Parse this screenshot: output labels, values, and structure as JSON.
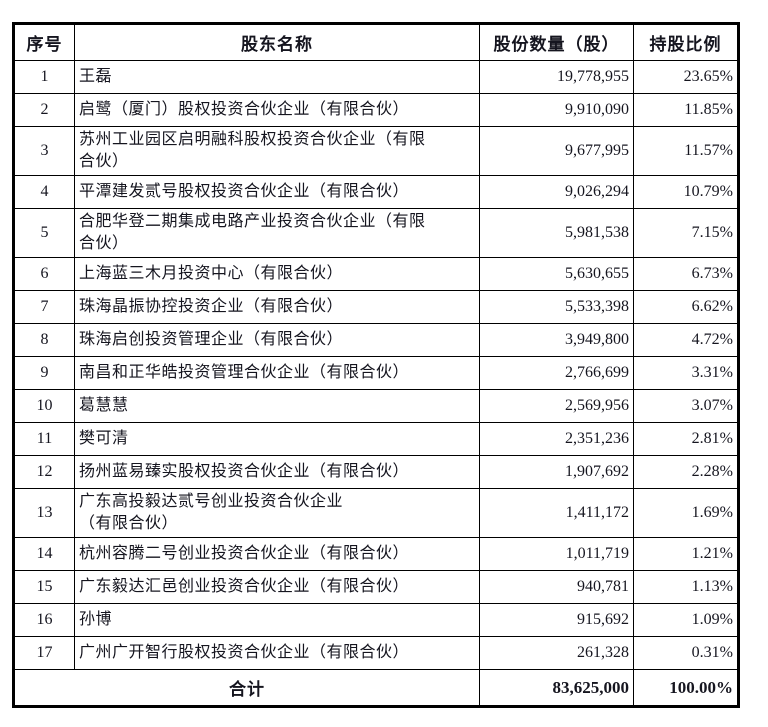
{
  "colors": {
    "background": "#ffffff",
    "border": "#000000",
    "text": "#15151f"
  },
  "table": {
    "headers": {
      "index": "序号",
      "name": "股东名称",
      "shares": "股份数量（股）",
      "pct": "持股比例"
    },
    "rows": [
      {
        "no": "1",
        "name": "王磊",
        "shares": "19,778,955",
        "pct": "23.65%"
      },
      {
        "no": "2",
        "name": "启鹭（厦门）股权投资合伙企业（有限合伙）",
        "shares": "9,910,090",
        "pct": "11.85%"
      },
      {
        "no": "3",
        "name": "苏州工业园区启明融科股权投资合伙企业（有限\n合伙）",
        "shares": "9,677,995",
        "pct": "11.57%"
      },
      {
        "no": "4",
        "name": "平潭建发贰号股权投资合伙企业（有限合伙）",
        "shares": "9,026,294",
        "pct": "10.79%"
      },
      {
        "no": "5",
        "name": "合肥华登二期集成电路产业投资合伙企业（有限\n合伙）",
        "shares": "5,981,538",
        "pct": "7.15%"
      },
      {
        "no": "6",
        "name": "上海蓝三木月投资中心（有限合伙）",
        "shares": "5,630,655",
        "pct": "6.73%"
      },
      {
        "no": "7",
        "name": "珠海晶振协控投资企业（有限合伙）",
        "shares": "5,533,398",
        "pct": "6.62%"
      },
      {
        "no": "8",
        "name": "珠海启创投资管理企业（有限合伙）",
        "shares": "3,949,800",
        "pct": "4.72%"
      },
      {
        "no": "9",
        "name": "南昌和正华皓投资管理合伙企业（有限合伙）",
        "shares": "2,766,699",
        "pct": "3.31%"
      },
      {
        "no": "10",
        "name": "葛慧慧",
        "shares": "2,569,956",
        "pct": "3.07%"
      },
      {
        "no": "11",
        "name": "樊可清",
        "shares": "2,351,236",
        "pct": "2.81%"
      },
      {
        "no": "12",
        "name": "扬州蓝易臻实股权投资合伙企业（有限合伙）",
        "shares": "1,907,692",
        "pct": "2.28%"
      },
      {
        "no": "13",
        "name": "广东高投毅达贰号创业投资合伙企业\n（有限合伙）",
        "shares": "1,411,172",
        "pct": "1.69%"
      },
      {
        "no": "14",
        "name": "杭州容腾二号创业投资合伙企业（有限合伙）",
        "shares": "1,011,719",
        "pct": "1.21%"
      },
      {
        "no": "15",
        "name": "广东毅达汇邑创业投资合伙企业（有限合伙）",
        "shares": "940,781",
        "pct": "1.13%"
      },
      {
        "no": "16",
        "name": "孙博",
        "shares": "915,692",
        "pct": "1.09%"
      },
      {
        "no": "17",
        "name": "广州广开智行股权投资合伙企业（有限合伙）",
        "shares": "261,328",
        "pct": "0.31%"
      }
    ],
    "total": {
      "label": "合计",
      "shares": "83,625,000",
      "pct": "100.00%"
    }
  }
}
